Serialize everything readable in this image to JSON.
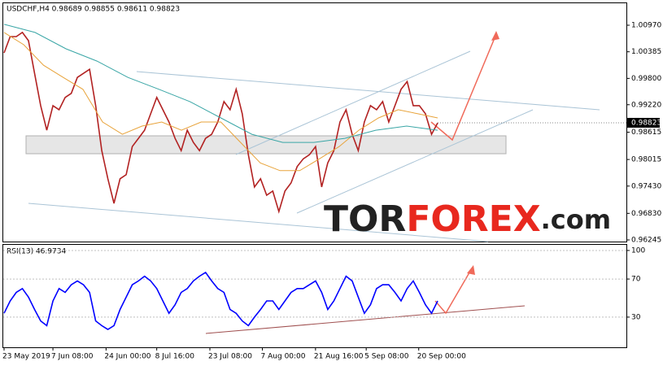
{
  "chart_data": [
    {
      "type": "line",
      "title": "USDCHF,H4  0.98689 0.98855 0.98611 0.98823",
      "last_price": 0.98823,
      "ylim": [
        0.96209,
        1.01471
      ],
      "yticks": [
        {
          "value": 1.0097,
          "label": "1.00970"
        },
        1.00385,
        {
          "value": 0.998,
          "label": "0.99800"
        },
        {
          "value": 0.9922,
          "label": "0.99220"
        },
        0.98615,
        0.98015,
        {
          "value": 0.9743,
          "label": "0.97430"
        },
        {
          "value": 0.9683,
          "label": "0.96830"
        },
        0.96245
      ],
      "series": [
        {
          "color": "#b22222",
          "values": [
            1.0036,
            1.0072,
            1.0072,
            1.0081,
            1.0063,
            0.9991,
            0.992,
            0.9866,
            0.992,
            0.9911,
            0.9938,
            0.9947,
            0.9982,
            0.9991,
            1.0,
            0.992,
            0.9821,
            0.9759,
            0.9705,
            0.9759,
            0.9768,
            0.983,
            0.9848,
            0.9866,
            0.9902,
            0.9938,
            0.9911,
            0.9884,
            0.9848,
            0.9821,
            0.9866,
            0.9839,
            0.9821,
            0.9848,
            0.9857,
            0.9884,
            0.9929,
            0.9911,
            0.9956,
            0.9902,
            0.9812,
            0.9741,
            0.9759,
            0.9723,
            0.9732,
            0.9687,
            0.9732,
            0.975,
            0.9786,
            0.9803,
            0.9812,
            0.983,
            0.9741,
            0.9794,
            0.9821,
            0.9884,
            0.9911,
            0.9857,
            0.9821,
            0.9884,
            0.992,
            0.9911,
            0.9929,
            0.9884,
            0.992,
            0.9956,
            0.9973,
            0.992,
            0.992,
            0.9902,
            0.9857,
            0.9882
          ]
        },
        {
          "color": "#e8a33a",
          "values": [
            1.0081,
            1.0054,
            1.0009,
            0.9982,
            0.9956,
            0.9884,
            0.9857,
            0.9875,
            0.9884,
            0.9866,
            0.9884,
            0.9884,
            0.9839,
            0.9794,
            0.9777,
            0.9777,
            0.9803,
            0.983,
            0.9866,
            0.9893,
            0.9911,
            0.9902,
            0.9893
          ]
        },
        {
          "color": "#3aa6a6",
          "values": [
            1.0099,
            1.0081,
            1.0045,
            1.0018,
            0.9982,
            0.9956,
            0.9929,
            0.9893,
            0.9857,
            0.9839,
            0.9839,
            0.9848,
            0.9866,
            0.9875,
            0.9866
          ]
        }
      ]
    },
    {
      "type": "line",
      "title": "RSI(13) 46.9734",
      "ylim": [
        -1.7,
        106.8
      ],
      "yticks": [
        100,
        70,
        30
      ],
      "series": [
        {
          "color": "#0000ff",
          "values": [
            34,
            47,
            56,
            60,
            51,
            38,
            26,
            21,
            47,
            60,
            56,
            64,
            68,
            64,
            56,
            26,
            21,
            17,
            21,
            38,
            51,
            64,
            68,
            73,
            68,
            60,
            47,
            34,
            43,
            56,
            60,
            68,
            73,
            77,
            68,
            60,
            56,
            38,
            34,
            26,
            21,
            30,
            38,
            47,
            47,
            38,
            47,
            56,
            60,
            60,
            64,
            68,
            56,
            38,
            47,
            60,
            73,
            68,
            51,
            34,
            43,
            60,
            64,
            64,
            56,
            47,
            60,
            68,
            56,
            43,
            34,
            47
          ]
        }
      ],
      "xticks": [
        {
          "value": 0,
          "label": "23 May 2019"
        },
        {
          "value": 8,
          "label": "7 Jun 08:00"
        },
        {
          "value": 16.7,
          "label": "24 Jun 00:00"
        },
        {
          "value": 25,
          "label": "8 Jul 16:00"
        },
        {
          "value": 33.7,
          "label": "23 Jul 08:00"
        },
        {
          "value": 42.3,
          "label": "7 Aug 00:00"
        },
        {
          "value": 51,
          "label": "21 Aug 16:00"
        },
        {
          "value": 59.3,
          "label": "5 Sep 08:00"
        },
        {
          "value": 67.9,
          "label": "20 Sep 00:00"
        }
      ]
    }
  ],
  "watermark": {
    "part1": "TOR",
    "part2": "FOREX",
    "part3": ".com"
  }
}
